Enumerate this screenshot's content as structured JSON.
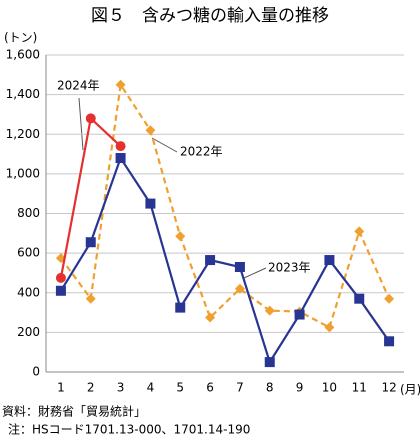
{
  "chart_data": {
    "type": "line",
    "title": "図５　含みつ糖の輸入量の推移",
    "y_label": "(トン)",
    "x_label": "(月)",
    "categories": [
      "1",
      "2",
      "3",
      "4",
      "5",
      "6",
      "7",
      "8",
      "9",
      "10",
      "11",
      "12"
    ],
    "series": [
      {
        "name": "2022年",
        "color": "#f0a030",
        "dash": true,
        "marker": "diamond",
        "values": [
          575,
          370,
          1450,
          1220,
          685,
          275,
          420,
          310,
          305,
          225,
          710,
          370
        ]
      },
      {
        "name": "2023年",
        "color": "#283593",
        "dash": false,
        "marker": "square",
        "values": [
          410,
          655,
          1080,
          850,
          325,
          565,
          530,
          50,
          290,
          565,
          370,
          155
        ]
      },
      {
        "name": "2024年",
        "color": "#e53030",
        "dash": false,
        "marker": "circle",
        "values": [
          475,
          1280,
          1140,
          null,
          null,
          null,
          null,
          null,
          null,
          null,
          null,
          null
        ]
      }
    ],
    "ylim": [
      0,
      1600
    ],
    "yticks": [
      0,
      200,
      400,
      600,
      800,
      {
        "value": 1000,
        "label": "1,000"
      },
      {
        "value": 1200,
        "label": "1,200"
      },
      {
        "value": 1400,
        "label": "1,400"
      },
      {
        "value": 1600,
        "label": "1,600"
      }
    ],
    "grid": true,
    "notes": [
      "資料：財務省「貿易統計」",
      "注：HSコード1701.13-000、1701.14-190"
    ]
  }
}
